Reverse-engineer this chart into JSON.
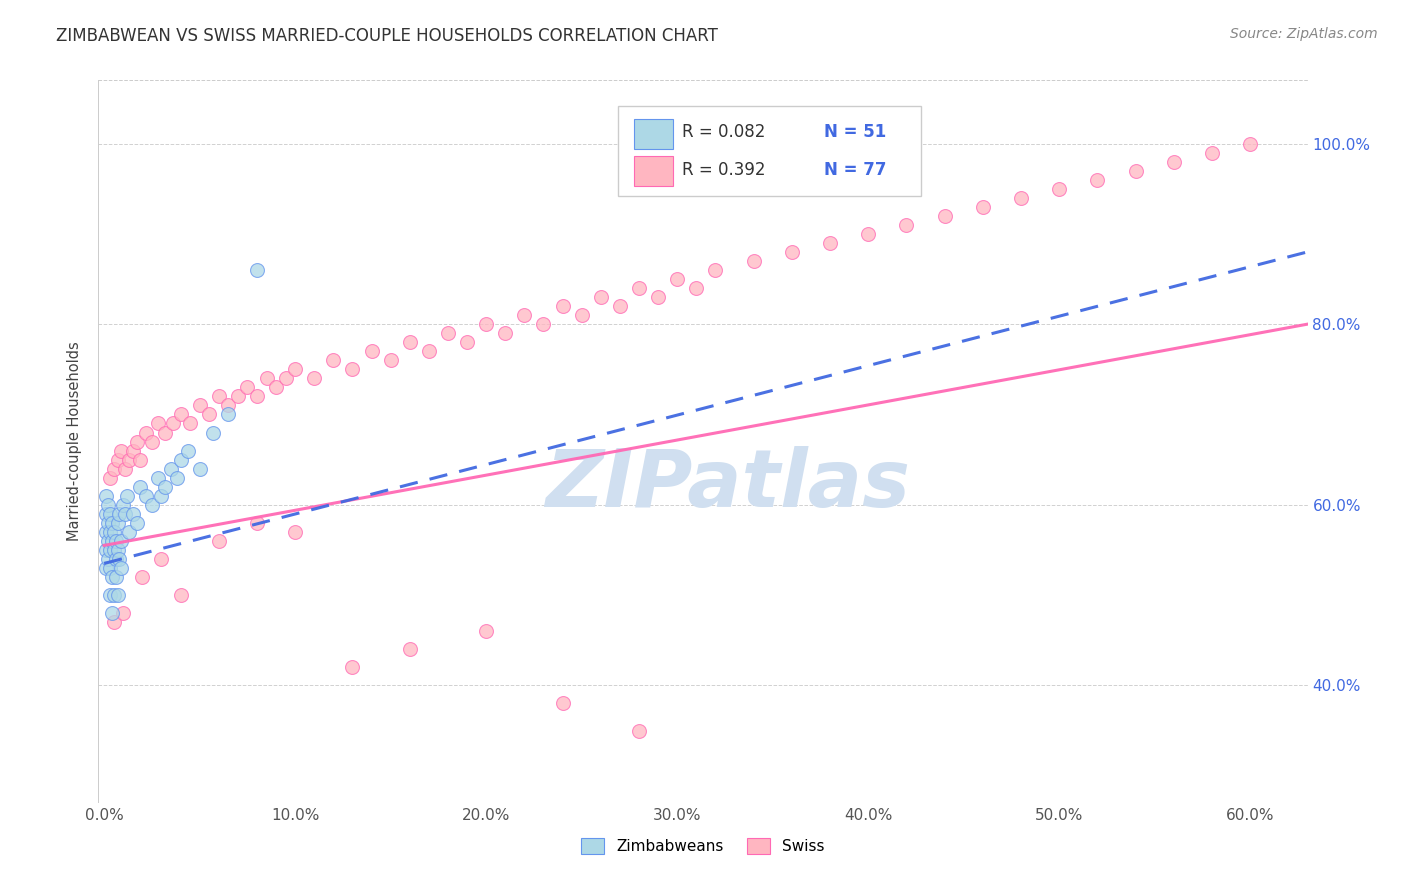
{
  "title": "ZIMBABWEAN VS SWISS MARRIED-COUPLE HOUSEHOLDS CORRELATION CHART",
  "source": "Source: ZipAtlas.com",
  "ylabel_label": "Married-couple Households",
  "xlim": [
    -0.003,
    0.63
  ],
  "ylim": [
    0.27,
    1.07
  ],
  "ytick_vals": [
    0.4,
    0.6,
    0.8,
    1.0
  ],
  "xtick_vals": [
    0.0,
    0.1,
    0.2,
    0.3,
    0.4,
    0.5,
    0.6
  ],
  "legend_r_zim": "R = 0.082",
  "legend_n_zim": "N = 51",
  "legend_r_swiss": "R = 0.392",
  "legend_n_swiss": "N = 77",
  "zim_fill_color": "#ADD8E6",
  "swiss_fill_color": "#FFB6C1",
  "zim_edge_color": "#6495ED",
  "swiss_edge_color": "#FF69B4",
  "zim_line_color": "#4169E1",
  "swiss_line_color": "#FF69B4",
  "watermark_color": "#D0DFF0",
  "zim_points_x": [
    0.001,
    0.001,
    0.001,
    0.001,
    0.001,
    0.002,
    0.002,
    0.002,
    0.002,
    0.003,
    0.003,
    0.003,
    0.003,
    0.003,
    0.004,
    0.004,
    0.004,
    0.004,
    0.005,
    0.005,
    0.005,
    0.006,
    0.006,
    0.006,
    0.007,
    0.007,
    0.007,
    0.008,
    0.008,
    0.009,
    0.009,
    0.01,
    0.011,
    0.012,
    0.013,
    0.015,
    0.017,
    0.019,
    0.022,
    0.025,
    0.028,
    0.03,
    0.032,
    0.035,
    0.038,
    0.04,
    0.044,
    0.05,
    0.057,
    0.065,
    0.08
  ],
  "zim_points_y": [
    0.57,
    0.59,
    0.61,
    0.55,
    0.53,
    0.56,
    0.58,
    0.6,
    0.54,
    0.55,
    0.57,
    0.59,
    0.53,
    0.5,
    0.56,
    0.58,
    0.52,
    0.48,
    0.57,
    0.55,
    0.5,
    0.56,
    0.54,
    0.52,
    0.58,
    0.55,
    0.5,
    0.59,
    0.54,
    0.56,
    0.53,
    0.6,
    0.59,
    0.61,
    0.57,
    0.59,
    0.58,
    0.62,
    0.61,
    0.6,
    0.63,
    0.61,
    0.62,
    0.64,
    0.63,
    0.65,
    0.66,
    0.64,
    0.68,
    0.7,
    0.86
  ],
  "swiss_points_x": [
    0.003,
    0.005,
    0.007,
    0.009,
    0.011,
    0.013,
    0.015,
    0.017,
    0.019,
    0.022,
    0.025,
    0.028,
    0.032,
    0.036,
    0.04,
    0.045,
    0.05,
    0.055,
    0.06,
    0.065,
    0.07,
    0.075,
    0.08,
    0.085,
    0.09,
    0.095,
    0.1,
    0.11,
    0.12,
    0.13,
    0.14,
    0.15,
    0.16,
    0.17,
    0.18,
    0.19,
    0.2,
    0.21,
    0.22,
    0.23,
    0.24,
    0.25,
    0.26,
    0.27,
    0.28,
    0.29,
    0.3,
    0.31,
    0.32,
    0.34,
    0.36,
    0.38,
    0.4,
    0.42,
    0.44,
    0.46,
    0.48,
    0.5,
    0.52,
    0.54,
    0.56,
    0.58,
    0.6,
    0.005,
    0.01,
    0.02,
    0.03,
    0.04,
    0.06,
    0.08,
    0.1,
    0.13,
    0.16,
    0.2,
    0.24,
    0.28
  ],
  "swiss_points_y": [
    0.63,
    0.64,
    0.65,
    0.66,
    0.64,
    0.65,
    0.66,
    0.67,
    0.65,
    0.68,
    0.67,
    0.69,
    0.68,
    0.69,
    0.7,
    0.69,
    0.71,
    0.7,
    0.72,
    0.71,
    0.72,
    0.73,
    0.72,
    0.74,
    0.73,
    0.74,
    0.75,
    0.74,
    0.76,
    0.75,
    0.77,
    0.76,
    0.78,
    0.77,
    0.79,
    0.78,
    0.8,
    0.79,
    0.81,
    0.8,
    0.82,
    0.81,
    0.83,
    0.82,
    0.84,
    0.83,
    0.85,
    0.84,
    0.86,
    0.87,
    0.88,
    0.89,
    0.9,
    0.91,
    0.92,
    0.93,
    0.94,
    0.95,
    0.96,
    0.97,
    0.98,
    0.99,
    1.0,
    0.47,
    0.48,
    0.52,
    0.54,
    0.5,
    0.56,
    0.58,
    0.57,
    0.42,
    0.44,
    0.46,
    0.38,
    0.35
  ]
}
